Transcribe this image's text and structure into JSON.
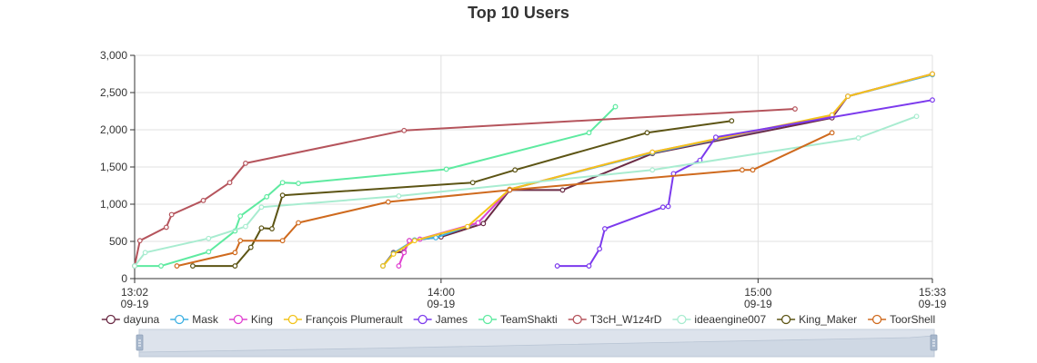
{
  "chart_data": {
    "type": "line",
    "title": "Top 10 Users",
    "xlabel": "",
    "ylabel": "",
    "ylim": [
      0,
      3000
    ],
    "y_ticks": [
      "0",
      "500",
      "1,000",
      "1,500",
      "2,000",
      "2,500",
      "3,000"
    ],
    "x_range": [
      "13:02",
      "15:33"
    ],
    "x_ticks": [
      {
        "time": "13:02",
        "date": "09-19"
      },
      {
        "time": "14:00",
        "date": "09-19"
      },
      {
        "time": "15:00",
        "date": "09-19"
      },
      {
        "time": "15:33",
        "date": "09-19"
      }
    ],
    "grid": true,
    "legend_position": "bottom",
    "data_zoom_slider": true,
    "series": [
      {
        "name": "dayuna",
        "color": "#6b2b45",
        "points": [
          [
            "13:49",
            170
          ],
          [
            "13:51",
            350
          ],
          [
            "13:53",
            360
          ],
          [
            "13:54",
            510
          ],
          [
            "14:00",
            560
          ],
          [
            "14:08",
            740
          ],
          [
            "14:13",
            1190
          ],
          [
            "14:23",
            1190
          ],
          [
            "14:40",
            1680
          ],
          [
            "15:14",
            2160
          ],
          [
            "15:17",
            2450
          ],
          [
            "15:33",
            2750
          ]
        ]
      },
      {
        "name": "Mask",
        "color": "#3fb1e3",
        "points": [
          [
            "13:49",
            170
          ],
          [
            "13:51",
            340
          ],
          [
            "13:55",
            520
          ],
          [
            "13:59",
            550
          ],
          [
            "14:07",
            750
          ],
          [
            "14:13",
            1200
          ],
          [
            "14:40",
            1690
          ],
          [
            "15:14",
            2190
          ],
          [
            "15:17",
            2450
          ],
          [
            "15:33",
            2740
          ]
        ]
      },
      {
        "name": "King",
        "color": "#e040d0",
        "points": [
          [
            "13:52",
            170
          ],
          [
            "13:53",
            350
          ],
          [
            "13:54",
            510
          ],
          [
            "13:56",
            530
          ],
          [
            "14:07",
            750
          ],
          [
            "14:13",
            1200
          ],
          [
            "14:40",
            1700
          ],
          [
            "15:14",
            2190
          ],
          [
            "15:17",
            2450
          ],
          [
            "15:33",
            2750
          ]
        ]
      },
      {
        "name": "François Plumerault",
        "color": "#f2c31a",
        "points": [
          [
            "13:49",
            170
          ],
          [
            "13:51",
            330
          ],
          [
            "13:55",
            510
          ],
          [
            "14:05",
            700
          ],
          [
            "14:13",
            1200
          ],
          [
            "14:40",
            1700
          ],
          [
            "15:14",
            2200
          ],
          [
            "15:17",
            2450
          ],
          [
            "15:33",
            2750
          ]
        ]
      },
      {
        "name": "James",
        "color": "#7c3aed",
        "points": [
          [
            "14:22",
            170
          ],
          [
            "14:28",
            170
          ],
          [
            "14:30",
            400
          ],
          [
            "14:31",
            670
          ],
          [
            "14:42",
            960
          ],
          [
            "14:43",
            970
          ],
          [
            "14:44",
            1410
          ],
          [
            "14:49",
            1590
          ],
          [
            "14:52",
            1900
          ],
          [
            "15:33",
            2400
          ]
        ]
      },
      {
        "name": "TeamShakti",
        "color": "#5eeaa0",
        "points": [
          [
            "13:02",
            170
          ],
          [
            "13:07",
            170
          ],
          [
            "13:16",
            360
          ],
          [
            "13:21",
            640
          ],
          [
            "13:22",
            840
          ],
          [
            "13:27",
            1100
          ],
          [
            "13:30",
            1290
          ],
          [
            "13:33",
            1280
          ],
          [
            "14:01",
            1470
          ],
          [
            "14:28",
            1960
          ],
          [
            "14:33",
            2310
          ]
        ]
      },
      {
        "name": "T3cH_W1z4rD",
        "color": "#b5545c",
        "points": [
          [
            "13:02",
            170
          ],
          [
            "13:03",
            510
          ],
          [
            "13:08",
            690
          ],
          [
            "13:09",
            860
          ],
          [
            "13:15",
            1050
          ],
          [
            "13:20",
            1290
          ],
          [
            "13:23",
            1550
          ],
          [
            "13:53",
            1990
          ],
          [
            "15:07",
            2280
          ]
        ]
      },
      {
        "name": "ideaengine007",
        "color": "#a8ecd0",
        "points": [
          [
            "13:02",
            170
          ],
          [
            "13:04",
            350
          ],
          [
            "13:16",
            540
          ],
          [
            "13:23",
            700
          ],
          [
            "13:26",
            960
          ],
          [
            "13:52",
            1110
          ],
          [
            "14:40",
            1460
          ],
          [
            "15:19",
            1890
          ],
          [
            "15:30",
            2180
          ]
        ]
      },
      {
        "name": "King_Maker",
        "color": "#5c5414",
        "points": [
          [
            "13:13",
            170
          ],
          [
            "13:21",
            170
          ],
          [
            "13:24",
            420
          ],
          [
            "13:26",
            680
          ],
          [
            "13:28",
            670
          ],
          [
            "13:30",
            1120
          ],
          [
            "14:06",
            1290
          ],
          [
            "14:14",
            1460
          ],
          [
            "14:39",
            1960
          ],
          [
            "14:55",
            2120
          ]
        ]
      },
      {
        "name": "ToorShell",
        "color": "#cf6a1e",
        "points": [
          [
            "13:10",
            170
          ],
          [
            "13:21",
            350
          ],
          [
            "13:22",
            510
          ],
          [
            "13:30",
            510
          ],
          [
            "13:33",
            750
          ],
          [
            "13:50",
            1030
          ],
          [
            "14:13",
            1190
          ],
          [
            "14:57",
            1460
          ],
          [
            "14:59",
            1460
          ],
          [
            "15:14",
            1960
          ]
        ]
      }
    ]
  }
}
